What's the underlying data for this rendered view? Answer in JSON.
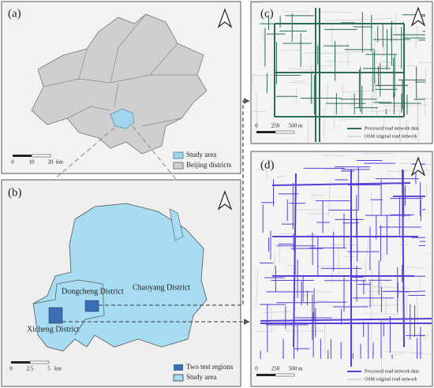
{
  "panels": [
    {
      "label": "(a)",
      "scale": [
        "0",
        "10",
        "20",
        "km"
      ],
      "legend": [
        "Study area",
        "Beijing districts"
      ]
    },
    {
      "label": "(b)",
      "scale": [
        "0",
        "2.5",
        "5",
        "km"
      ],
      "legend": [
        "Two test regions",
        "Study area"
      ],
      "districts": [
        "Dongcheng District",
        "Chaoyang District",
        "Xicheng District"
      ]
    },
    {
      "label": "(c)",
      "scale": [
        "0",
        "250",
        "500",
        "m"
      ],
      "legend": [
        "Processed road network data",
        "OSM original road network"
      ]
    },
    {
      "label": "(d)",
      "scale": [
        "0",
        "250",
        "500",
        "m"
      ],
      "legend": [
        "Processed road network data",
        "OSM original road network"
      ]
    }
  ]
}
